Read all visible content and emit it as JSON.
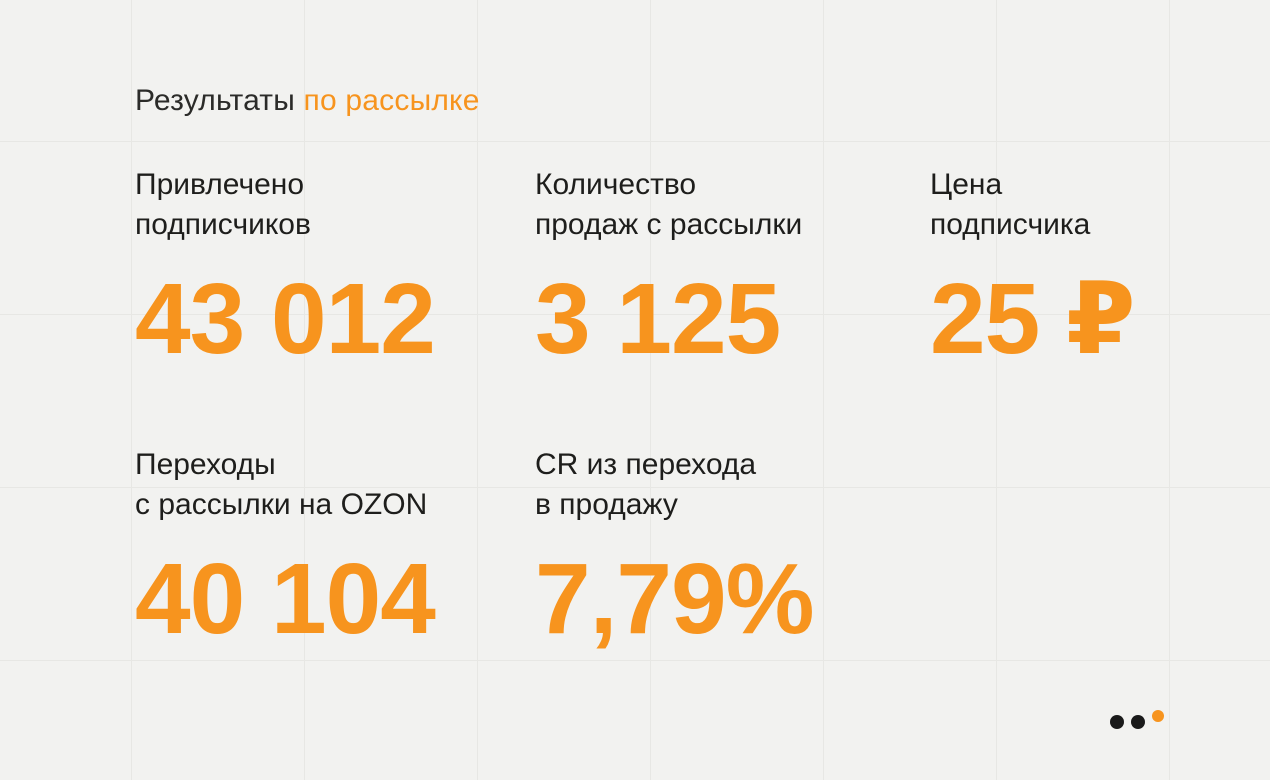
{
  "slide": {
    "title": {
      "text": "Результаты",
      "highlight": " по рассылке"
    }
  },
  "metrics": [
    {
      "label_line1": "Привлечено",
      "label_line2": "подписчиков",
      "value": "43 012"
    },
    {
      "label_line1": "Количество",
      "label_line2": "продаж с рассылки",
      "value": "3 125"
    },
    {
      "label_line1": "Цена",
      "label_line2": "подписчика",
      "value": "25 ₽"
    },
    {
      "label_line1": "Переходы",
      "label_line2": "с рассылки на OZON",
      "value": "40 104"
    },
    {
      "label_line1": "CR из перехода",
      "label_line2": "в продажу",
      "value": "7,79%"
    }
  ],
  "colors": {
    "accent": "#F7941E",
    "text": "#1E1E1C",
    "background": "#F2F2F0",
    "grid_line": "#E7E7E4",
    "logo_dot_dark": "#1A1A1A"
  }
}
